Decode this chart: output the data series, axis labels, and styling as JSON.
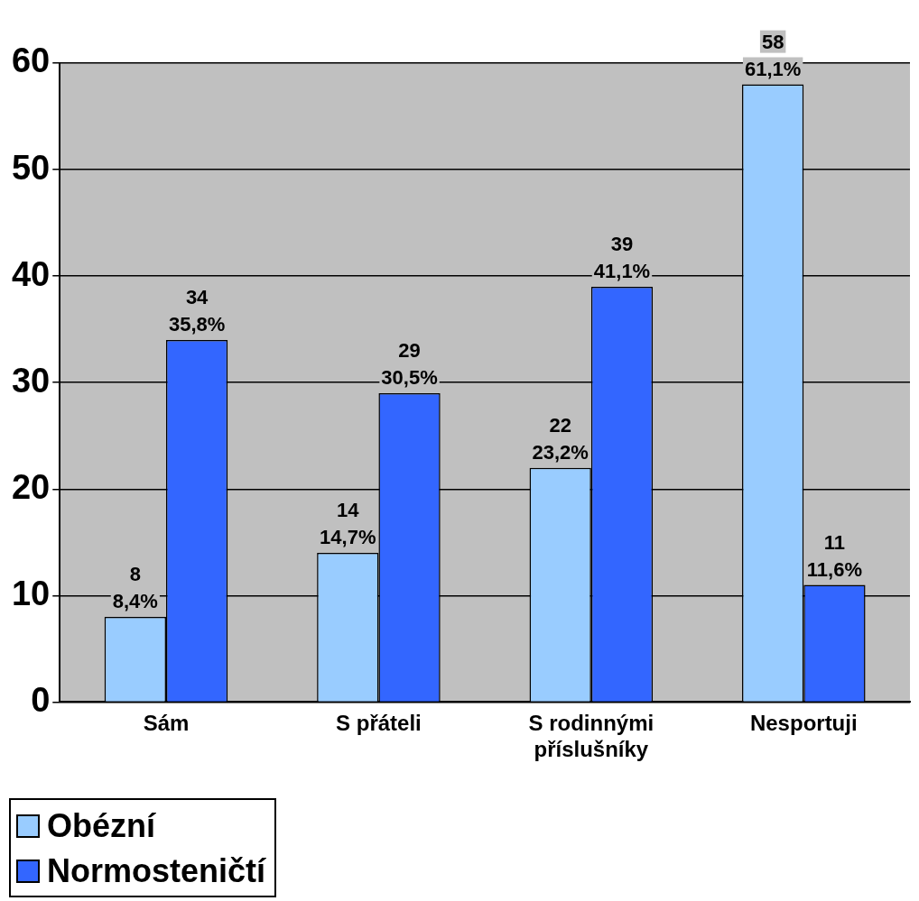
{
  "chart_data": {
    "type": "bar",
    "categories": [
      "Sám",
      "S přáteli",
      "S rodinnými příslušníky",
      "Nesportuji"
    ],
    "series": [
      {
        "name": "Obézní",
        "color": "#99ccff",
        "values": [
          8,
          14,
          22,
          58
        ],
        "value_labels": [
          "8\n8,4%",
          "14\n14,7%",
          "22\n23,2%",
          "58\n61,1%"
        ]
      },
      {
        "name": "Normosteničtí",
        "color": "#3366ff",
        "values": [
          34,
          29,
          39,
          11
        ],
        "value_labels": [
          "34\n35,8%",
          "29\n30,5%",
          "39\n41,1%",
          "11\n11,6%"
        ]
      }
    ],
    "ylim": [
      0,
      60
    ],
    "yticks": [
      0,
      10,
      20,
      30,
      40,
      50,
      60
    ],
    "grid": "y",
    "legend": "bottom left"
  }
}
